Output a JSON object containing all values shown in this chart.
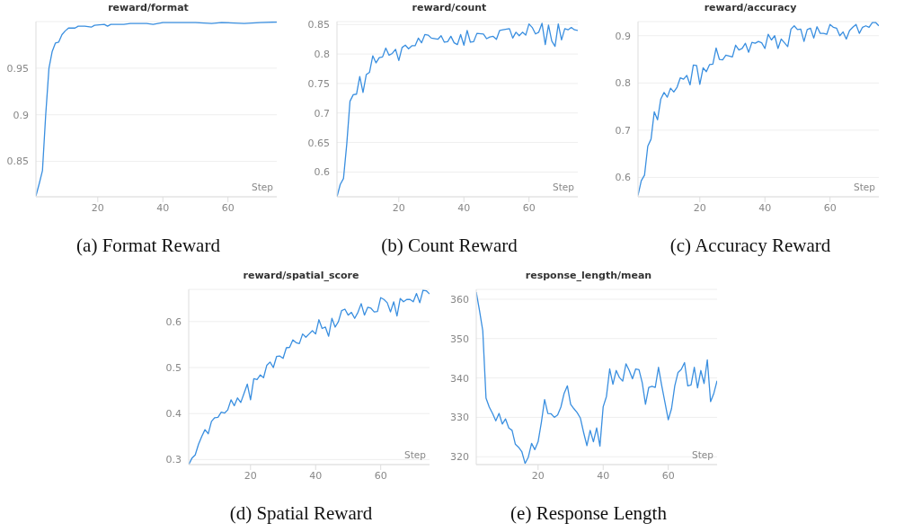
{
  "chart_data": [
    {
      "type": "line",
      "title": "reward/format",
      "xlabel": "Step",
      "annotations": [
        "(a) Format Reward"
      ],
      "color": "#3a8fe0",
      "grid": "y",
      "xlim": [
        1,
        75
      ],
      "xticks": [
        20,
        40,
        60
      ],
      "ylim": [
        0.812,
        1.0
      ],
      "yticks": [
        0.85,
        0.9,
        0.95
      ],
      "x": [
        1,
        2,
        3,
        4,
        5,
        6,
        7,
        8,
        9,
        10,
        11,
        12,
        13,
        14,
        16,
        18,
        19,
        22,
        23,
        24,
        28,
        30,
        35,
        37,
        40,
        50,
        55,
        58,
        65,
        70,
        75
      ],
      "values": [
        0.813,
        0.826,
        0.84,
        0.9,
        0.95,
        0.968,
        0.977,
        0.978,
        0.986,
        0.99,
        0.993,
        0.993,
        0.993,
        0.995,
        0.995,
        0.994,
        0.996,
        0.997,
        0.995,
        0.997,
        0.997,
        0.998,
        0.998,
        0.997,
        0.999,
        0.999,
        0.998,
        0.999,
        0.998,
        0.999,
        0.9995
      ]
    },
    {
      "type": "line",
      "title": "reward/count",
      "xlabel": "Step",
      "annotations": [
        "(b) Count Reward"
      ],
      "color": "#3a8fe0",
      "grid": "y",
      "xlim": [
        1,
        75
      ],
      "xticks": [
        20,
        40,
        60
      ],
      "ylim": [
        0.558,
        0.855
      ],
      "yticks": [
        0.6,
        0.65,
        0.7,
        0.75,
        0.8,
        0.85
      ],
      "x": [
        1,
        2,
        3,
        4,
        5,
        6,
        7,
        8,
        9,
        10,
        11,
        12,
        13,
        14,
        15,
        16,
        17,
        18,
        19,
        20,
        21,
        22,
        23,
        24,
        25,
        26,
        27,
        28,
        29,
        30,
        32,
        33,
        34,
        35,
        36,
        37,
        38,
        39,
        40,
        41,
        42,
        43,
        44,
        46,
        47,
        48,
        49,
        50,
        51,
        52,
        54,
        55,
        56,
        57,
        58,
        59,
        60,
        61,
        62,
        63,
        64,
        65,
        66,
        67,
        68,
        69,
        70,
        71,
        72,
        73,
        74,
        75
      ],
      "values": [
        0.558,
        0.579,
        0.589,
        0.647,
        0.72,
        0.731,
        0.732,
        0.762,
        0.735,
        0.765,
        0.769,
        0.797,
        0.785,
        0.794,
        0.795,
        0.81,
        0.798,
        0.801,
        0.808,
        0.789,
        0.811,
        0.815,
        0.809,
        0.814,
        0.814,
        0.827,
        0.819,
        0.833,
        0.832,
        0.827,
        0.825,
        0.831,
        0.82,
        0.821,
        0.83,
        0.819,
        0.816,
        0.833,
        0.815,
        0.84,
        0.82,
        0.821,
        0.835,
        0.834,
        0.826,
        0.829,
        0.83,
        0.825,
        0.84,
        0.841,
        0.843,
        0.827,
        0.837,
        0.831,
        0.837,
        0.832,
        0.851,
        0.845,
        0.834,
        0.837,
        0.852,
        0.816,
        0.849,
        0.822,
        0.813,
        0.851,
        0.824,
        0.843,
        0.841,
        0.845,
        0.841,
        0.84
      ]
    },
    {
      "type": "line",
      "title": "reward/accuracy",
      "xlabel": "Step",
      "annotations": [
        "(c) Accuracy Reward"
      ],
      "color": "#3a8fe0",
      "grid": "y",
      "xlim": [
        1,
        75
      ],
      "xticks": [
        20,
        40,
        60
      ],
      "ylim": [
        0.559,
        0.93
      ],
      "yticks": [
        0.6,
        0.7,
        0.8,
        0.9
      ],
      "x": [
        1,
        2,
        3,
        4,
        5,
        6,
        7,
        8,
        9,
        10,
        11,
        12,
        13,
        14,
        15,
        16,
        17,
        18,
        19,
        20,
        21,
        22,
        23,
        24,
        25,
        26,
        27,
        28,
        29,
        30,
        31,
        32,
        33,
        34,
        35,
        36,
        37,
        38,
        39,
        40,
        41,
        42,
        43,
        44,
        45,
        46,
        47,
        48,
        49,
        50,
        51,
        52,
        53,
        54,
        55,
        56,
        57,
        58,
        59,
        60,
        61,
        62,
        63,
        64,
        65,
        66,
        67,
        68,
        69,
        70,
        71,
        72,
        73,
        74,
        75
      ],
      "values": [
        0.562,
        0.593,
        0.605,
        0.666,
        0.681,
        0.739,
        0.722,
        0.766,
        0.78,
        0.77,
        0.789,
        0.781,
        0.791,
        0.811,
        0.808,
        0.816,
        0.796,
        0.838,
        0.837,
        0.797,
        0.832,
        0.824,
        0.839,
        0.84,
        0.874,
        0.85,
        0.849,
        0.859,
        0.857,
        0.855,
        0.88,
        0.87,
        0.873,
        0.884,
        0.865,
        0.886,
        0.884,
        0.888,
        0.885,
        0.873,
        0.903,
        0.891,
        0.9,
        0.873,
        0.893,
        0.885,
        0.877,
        0.914,
        0.921,
        0.913,
        0.914,
        0.888,
        0.913,
        0.916,
        0.895,
        0.919,
        0.905,
        0.905,
        0.903,
        0.924,
        0.918,
        0.916,
        0.9,
        0.908,
        0.893,
        0.911,
        0.918,
        0.924,
        0.905,
        0.918,
        0.921,
        0.918,
        0.928,
        0.928,
        0.921
      ]
    },
    {
      "type": "line",
      "title": "reward/spatial_score",
      "xlabel": "Step",
      "annotations": [
        "(d) Spatial Reward"
      ],
      "color": "#3a8fe0",
      "grid": "y",
      "xlim": [
        1,
        75
      ],
      "xticks": [
        20,
        40,
        60
      ],
      "ylim": [
        0.289,
        0.67
      ],
      "yticks": [
        0.3,
        0.4,
        0.5,
        0.6
      ],
      "x": [
        1,
        2,
        3,
        4,
        5,
        6,
        7,
        8,
        9,
        10,
        11,
        12,
        13,
        14,
        15,
        16,
        17,
        18,
        19,
        20,
        21,
        22,
        23,
        24,
        25,
        26,
        27,
        28,
        29,
        30,
        31,
        32,
        33,
        34,
        35,
        36,
        37,
        38,
        39,
        40,
        41,
        42,
        43,
        44,
        45,
        46,
        47,
        48,
        49,
        50,
        51,
        52,
        53,
        54,
        55,
        56,
        57,
        58,
        59,
        60,
        61,
        62,
        63,
        64,
        65,
        66,
        67,
        68,
        69,
        70,
        71,
        72,
        73,
        74,
        75
      ],
      "values": [
        0.289,
        0.303,
        0.31,
        0.333,
        0.35,
        0.365,
        0.356,
        0.383,
        0.391,
        0.392,
        0.403,
        0.401,
        0.408,
        0.43,
        0.417,
        0.434,
        0.424,
        0.444,
        0.464,
        0.43,
        0.476,
        0.474,
        0.484,
        0.478,
        0.505,
        0.512,
        0.5,
        0.524,
        0.525,
        0.52,
        0.543,
        0.544,
        0.56,
        0.554,
        0.552,
        0.573,
        0.566,
        0.573,
        0.58,
        0.573,
        0.604,
        0.585,
        0.588,
        0.568,
        0.607,
        0.588,
        0.6,
        0.624,
        0.627,
        0.614,
        0.62,
        0.607,
        0.62,
        0.639,
        0.614,
        0.631,
        0.629,
        0.621,
        0.622,
        0.652,
        0.648,
        0.641,
        0.621,
        0.643,
        0.612,
        0.65,
        0.643,
        0.648,
        0.648,
        0.643,
        0.661,
        0.641,
        0.668,
        0.667,
        0.66
      ]
    },
    {
      "type": "line",
      "title": "response_length/mean",
      "xlabel": "Step",
      "annotations": [
        "(e) Response Length"
      ],
      "color": "#3a8fe0",
      "grid": "y",
      "xlim": [
        1,
        75
      ],
      "xticks": [
        20,
        40,
        60
      ],
      "ylim": [
        318,
        362.5
      ],
      "yticks": [
        320,
        330,
        340,
        350,
        360
      ],
      "x": [
        1,
        2,
        3,
        4,
        5,
        6,
        7,
        8,
        9,
        10,
        11,
        12,
        13,
        14,
        15,
        16,
        17,
        18,
        19,
        20,
        21,
        22,
        23,
        24,
        25,
        26,
        27,
        28,
        29,
        30,
        31,
        32,
        33,
        34,
        35,
        36,
        37,
        38,
        39,
        40,
        41,
        42,
        43,
        44,
        45,
        46,
        47,
        48,
        49,
        50,
        51,
        52,
        53,
        54,
        55,
        56,
        57,
        58,
        59,
        60,
        61,
        62,
        63,
        64,
        65,
        66,
        67,
        68,
        69,
        70,
        71,
        72,
        73,
        74,
        75
      ],
      "values": [
        361.8,
        357.1,
        352.0,
        334.9,
        332.6,
        331.0,
        329.1,
        331.0,
        328.3,
        329.6,
        327.3,
        326.7,
        323.2,
        322.4,
        321.3,
        318.3,
        319.9,
        323.4,
        321.8,
        323.8,
        328.7,
        334.5,
        331.0,
        330.9,
        330.0,
        330.6,
        332.6,
        336.1,
        338.0,
        333.3,
        332.2,
        331.2,
        329.8,
        326.1,
        322.8,
        326.7,
        323.8,
        327.3,
        322.7,
        332.7,
        335.3,
        342.3,
        338.4,
        341.9,
        340.1,
        339.2,
        343.6,
        341.9,
        339.8,
        342.3,
        342.1,
        338.8,
        333.3,
        337.6,
        337.9,
        337.6,
        342.7,
        338.0,
        333.7,
        329.4,
        332.2,
        338.0,
        341.4,
        342.2,
        343.9,
        338.0,
        338.2,
        342.7,
        337.5,
        341.9,
        338.6,
        344.6,
        334.0,
        336.1,
        339.3
      ]
    }
  ]
}
